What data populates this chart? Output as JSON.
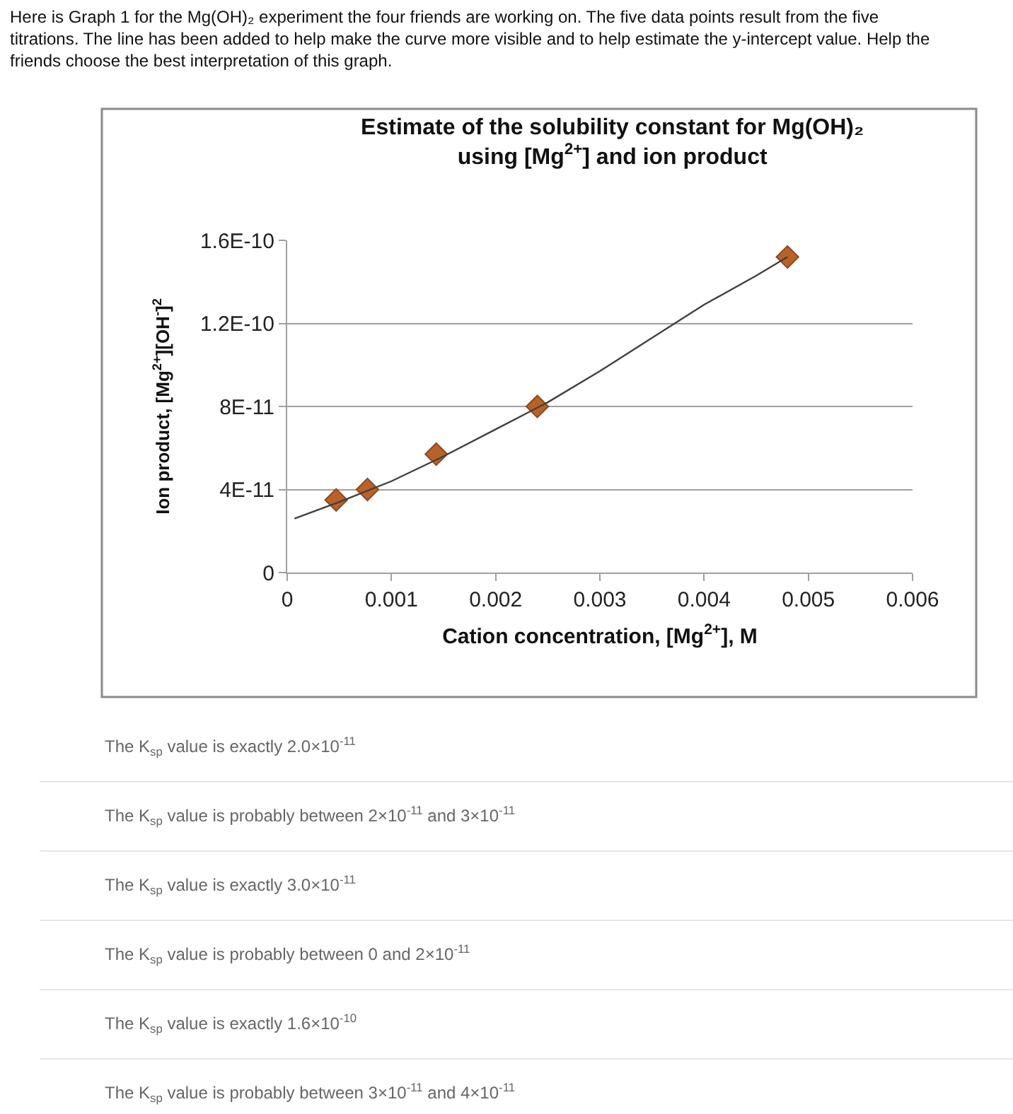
{
  "chart_data": {
    "type": "scatter",
    "title": "Estimate of the solubility constant for Mg(OH)₂\nusing [Mg$^{2+}$] and ion product",
    "xlabel": "Cation concentration, [Mg$^{2+}$], M",
    "ylabel": "Ion product, [Mg$^{2+}$][OH$^{-}$]$^{2}$",
    "series": [
      {
        "color": "#b8622a",
        "marker": "diamond",
        "x": [
          0.00047,
          0.00077,
          0.00143,
          0.0024,
          0.0048
        ],
        "values": [
          3.5e-11,
          4e-11,
          5.7e-11,
          8e-11,
          1.52e-10
        ]
      },
      {
        "type": "line",
        "color": "#404040",
        "marker": "none",
        "x": [
          7e-05,
          0.0005,
          0.001,
          0.0015,
          0.002,
          0.0025,
          0.003,
          0.0035,
          0.004,
          0.0045,
          0.0048
        ],
        "values": [
          2.6e-11,
          3.4e-11,
          4.4e-11,
          5.6e-11,
          6.9e-11,
          8.2e-11,
          9.7e-11,
          1.13e-10,
          1.29e-10,
          1.43e-10,
          1.52e-10
        ]
      }
    ],
    "xlim": [
      0,
      0.006
    ],
    "xticks": [
      0,
      0.001,
      0.002,
      0.003,
      0.004,
      0.005,
      0.006
    ],
    "ylim": [
      0,
      1.6e-10
    ],
    "yticks": [
      {
        "value": 0,
        "label": "0"
      },
      {
        "value": 4e-11,
        "label": "4E-11"
      },
      {
        "value": 8e-11,
        "label": "8E-11"
      },
      {
        "value": 1.2e-10,
        "label": "1.2E-10"
      },
      {
        "value": 1.6e-10,
        "label": "1.6E-10"
      }
    ],
    "grid": "y",
    "annotations": [
      "Here is Graph 1 for the Mg(OH)₂ experiment the four friends are working on. The five data points result from the five\ntitrations. The line has been added to help make the curve more visible and to help estimate the y-intercept value. Help the\nfriends choose the best interpretation of this graph.",
      "The K$_{sp}$ value is exactly 2.0×10$^{-11}$",
      "The K$_{sp}$ value is probably between 2×10$^{-11}$ and 3×10$^{-11}$",
      "The K$_{sp}$ value is exactly 3.0×10$^{-11}$",
      "The K$_{sp}$ value is probably between 0 and 2×10$^{-11}$",
      "The K$_{sp}$ value is exactly 1.6×10$^{-10}$",
      "The K$_{sp}$ value is probably between 3×10$^{-11}$ and 4×10$^{-11}$"
    ]
  }
}
